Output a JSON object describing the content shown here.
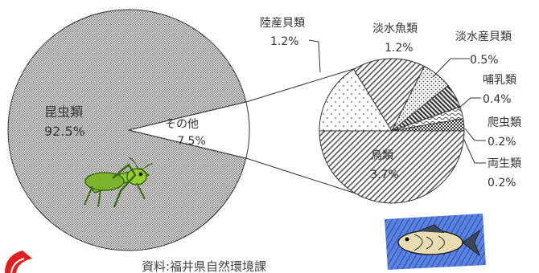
{
  "chart_data": {
    "type": "pie",
    "primary": {
      "slices": [
        {
          "label": "昆虫類",
          "value": 92.5,
          "value_label": "92.5%",
          "pattern": "fine-dots"
        },
        {
          "label": "その他",
          "value": 7.5,
          "value_label": "7.5%",
          "pattern": "none",
          "exploded_to_secondary": true
        }
      ]
    },
    "secondary": {
      "slices": [
        {
          "label": "陸産貝類",
          "value": 1.2,
          "value_label": "1.2%",
          "pattern": "sparse-dots"
        },
        {
          "label": "淡水魚類",
          "value": 1.2,
          "value_label": "1.2%",
          "pattern": "diagonal-lines"
        },
        {
          "label": "淡水産貝類",
          "value": 0.5,
          "value_label": "0.5%",
          "pattern": "dots"
        },
        {
          "label": "哺乳類",
          "value": 0.4,
          "value_label": "0.4%",
          "pattern": "dense-diagonal"
        },
        {
          "label": "爬虫類",
          "value": 0.2,
          "value_label": "0.2%",
          "pattern": "waves"
        },
        {
          "label": "両生類",
          "value": 0.2,
          "value_label": "0.2%",
          "pattern": "checker"
        },
        {
          "label": "鳥類",
          "value": 3.7,
          "value_label": "3.7%",
          "pattern": "diagonal-lines"
        }
      ]
    }
  },
  "source_note": "資料:福井県自然環境課",
  "decorations": {
    "grasshopper": "grasshopper-clipart",
    "fish": "fish-clipart",
    "corner_logo": "red-corner-logo"
  },
  "colors": {
    "outline": "#333333",
    "pattern_ink": "#555555",
    "fish_bg": "#4a6fd0",
    "grasshopper": "#7cb32a",
    "logo_red": "#e02020"
  }
}
